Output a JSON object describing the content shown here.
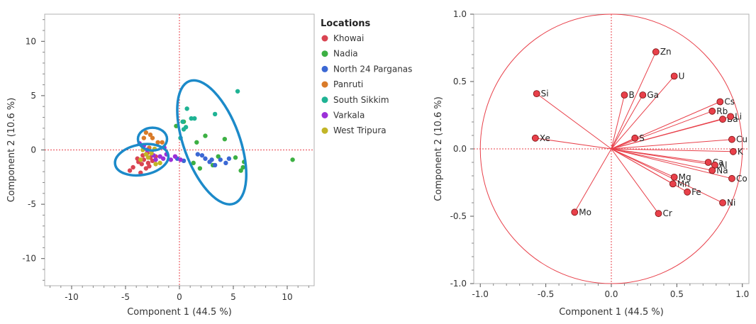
{
  "chart_data": [
    {
      "type": "scatter",
      "xlabel": "Component 1  (44.5 %)",
      "ylabel": "Component 2  (10.6 %)",
      "xlim": [
        -12.5,
        12.5
      ],
      "ylim": [
        -12.5,
        12.5
      ],
      "xticks": [
        -10,
        -5,
        0,
        5,
        10
      ],
      "yticks": [
        -10,
        -5,
        0,
        5,
        10
      ],
      "xtick_labels": [
        "-10",
        "-5",
        "0",
        "5",
        "10"
      ],
      "ytick_labels": [
        "-10",
        "-5",
        "0",
        "5",
        "10"
      ],
      "legend_title": "Locations",
      "legend_position": "right",
      "series": [
        {
          "name": "Khowai",
          "color": "#d94452",
          "points": [
            [
              -4.6,
              -1.9
            ],
            [
              -4.3,
              -1.6
            ],
            [
              -3.8,
              -1.1
            ],
            [
              -3.5,
              -1.3
            ],
            [
              -3.3,
              -0.9
            ],
            [
              -3.1,
              -1.7
            ],
            [
              -2.9,
              -1.2
            ],
            [
              -2.7,
              -0.7
            ],
            [
              -3.4,
              -0.5
            ],
            [
              -3.9,
              -0.8
            ],
            [
              -2.5,
              -1.0
            ],
            [
              -2.2,
              -0.6
            ],
            [
              -3.0,
              -0.3
            ],
            [
              -2.8,
              -1.5
            ],
            [
              -3.6,
              -2.1
            ]
          ]
        },
        {
          "name": "Nadia",
          "color": "#3cb043",
          "points": [
            [
              -0.3,
              2.2
            ],
            [
              0.4,
              2.6
            ],
            [
              1.6,
              0.7
            ],
            [
              1.9,
              -1.7
            ],
            [
              2.4,
              1.3
            ],
            [
              3.1,
              -1.4
            ],
            [
              3.6,
              -0.6
            ],
            [
              4.2,
              1.0
            ],
            [
              5.2,
              -0.7
            ],
            [
              5.7,
              -1.9
            ],
            [
              5.9,
              -1.6
            ],
            [
              6.0,
              -1.1
            ],
            [
              10.5,
              -0.9
            ],
            [
              1.3,
              -1.2
            ]
          ]
        },
        {
          "name": "North 24 Parganas",
          "color": "#3b68d4",
          "points": [
            [
              2.1,
              -0.5
            ],
            [
              2.4,
              -0.8
            ],
            [
              2.8,
              -1.1
            ],
            [
              3.0,
              -0.9
            ],
            [
              3.3,
              -1.4
            ],
            [
              3.8,
              -0.9
            ],
            [
              4.3,
              -1.2
            ],
            [
              1.7,
              -0.4
            ],
            [
              0.4,
              -1.0
            ],
            [
              -0.2,
              -0.8
            ],
            [
              4.6,
              -0.8
            ]
          ]
        },
        {
          "name": "Panruti",
          "color": "#d97b29",
          "points": [
            [
              -3.1,
              1.6
            ],
            [
              -2.7,
              1.4
            ],
            [
              -2.5,
              1.1
            ],
            [
              -2.0,
              0.7
            ],
            [
              -1.6,
              0.7
            ],
            [
              -3.3,
              1.1
            ],
            [
              -2.8,
              0.2
            ]
          ]
        },
        {
          "name": "South Sikkim",
          "color": "#1fb394",
          "points": [
            [
              5.4,
              5.4
            ],
            [
              3.3,
              3.3
            ],
            [
              0.7,
              3.8
            ],
            [
              1.1,
              2.9
            ],
            [
              0.3,
              2.6
            ],
            [
              0.6,
              2.1
            ],
            [
              1.4,
              2.9
            ],
            [
              0.1,
              1.1
            ],
            [
              0.4,
              1.9
            ]
          ]
        },
        {
          "name": "Varkala",
          "color": "#9b30d8",
          "points": [
            [
              -3.7,
              0.6
            ],
            [
              -3.3,
              0.4
            ],
            [
              -3.0,
              0.0
            ],
            [
              -2.6,
              -0.2
            ],
            [
              -2.4,
              -0.5
            ],
            [
              -2.2,
              -0.9
            ],
            [
              -1.8,
              -0.6
            ],
            [
              -1.5,
              -0.8
            ],
            [
              -1.2,
              -0.4
            ],
            [
              -0.8,
              -0.9
            ],
            [
              -0.4,
              -0.6
            ],
            [
              0.1,
              -0.9
            ],
            [
              -1.4,
              0.2
            ]
          ]
        },
        {
          "name": "West Tripura",
          "color": "#c2b527",
          "points": [
            [
              -3.4,
              0.0
            ],
            [
              -3.1,
              -0.4
            ],
            [
              -2.9,
              -0.7
            ],
            [
              -2.6,
              -0.3
            ],
            [
              -2.2,
              -1.3
            ],
            [
              -1.8,
              -1.2
            ],
            [
              -3.6,
              -0.9
            ],
            [
              -2.3,
              0.1
            ]
          ]
        }
      ],
      "annotations": [
        {
          "type": "ellipse",
          "color": "#1c8ac9",
          "center": [
            -3.5,
            -0.9
          ],
          "rx": 2.5,
          "ry": 1.4,
          "angle_deg": 10
        },
        {
          "type": "ellipse",
          "color": "#1c8ac9",
          "center": [
            -2.5,
            1.0
          ],
          "rx": 1.35,
          "ry": 1.05,
          "angle_deg": 0
        },
        {
          "type": "ellipse",
          "color": "#1c8ac9",
          "center": [
            3.0,
            0.7
          ],
          "rx": 2.6,
          "ry": 6.0,
          "angle_deg": 20
        }
      ]
    },
    {
      "type": "scatter",
      "xlabel": "Component 1  (44.5 %)",
      "ylabel": "Component 2  (10.6 %)",
      "xlim": [
        -1.05,
        1.05
      ],
      "ylim": [
        -1.0,
        1.0
      ],
      "xticks": [
        -1.0,
        -0.5,
        0.0,
        0.5,
        1.0
      ],
      "yticks": [
        -1.0,
        -0.5,
        0.0,
        0.5,
        1.0
      ],
      "xtick_labels": [
        "-1.0",
        "-0.5",
        "0.0",
        "0.5",
        "1.0"
      ],
      "ytick_labels": [
        "-1.0",
        "-0.5",
        "0.0",
        "0.5",
        "1.0"
      ],
      "circle_radius": 1.0,
      "color": "#e8404a",
      "loadings": [
        {
          "label": "Zn",
          "x": 0.34,
          "y": 0.72
        },
        {
          "label": "U",
          "x": 0.48,
          "y": 0.54
        },
        {
          "label": "B",
          "x": 0.1,
          "y": 0.4
        },
        {
          "label": "Ga",
          "x": 0.24,
          "y": 0.4
        },
        {
          "label": "Si",
          "x": -0.57,
          "y": 0.41
        },
        {
          "label": "Cs",
          "x": 0.83,
          "y": 0.35
        },
        {
          "label": "Rb",
          "x": 0.77,
          "y": 0.28
        },
        {
          "label": "Ba",
          "x": 0.85,
          "y": 0.22
        },
        {
          "label": "Li",
          "x": 0.91,
          "y": 0.24
        },
        {
          "label": "S",
          "x": 0.18,
          "y": 0.08
        },
        {
          "label": "Xe",
          "x": -0.58,
          "y": 0.08
        },
        {
          "label": "Cu",
          "x": 0.92,
          "y": 0.07
        },
        {
          "label": "K",
          "x": 0.93,
          "y": -0.02
        },
        {
          "label": "Ca",
          "x": 0.74,
          "y": -0.1
        },
        {
          "label": "Al",
          "x": 0.79,
          "y": -0.12
        },
        {
          "label": "Na",
          "x": 0.77,
          "y": -0.16
        },
        {
          "label": "Co",
          "x": 0.92,
          "y": -0.22
        },
        {
          "label": "Mg",
          "x": 0.48,
          "y": -0.21
        },
        {
          "label": "Mn",
          "x": 0.47,
          "y": -0.26
        },
        {
          "label": "Fe",
          "x": 0.58,
          "y": -0.32
        },
        {
          "label": "Ni",
          "x": 0.85,
          "y": -0.4
        },
        {
          "label": "Mo",
          "x": -0.28,
          "y": -0.47
        },
        {
          "label": "Cr",
          "x": 0.36,
          "y": -0.48
        }
      ]
    }
  ]
}
